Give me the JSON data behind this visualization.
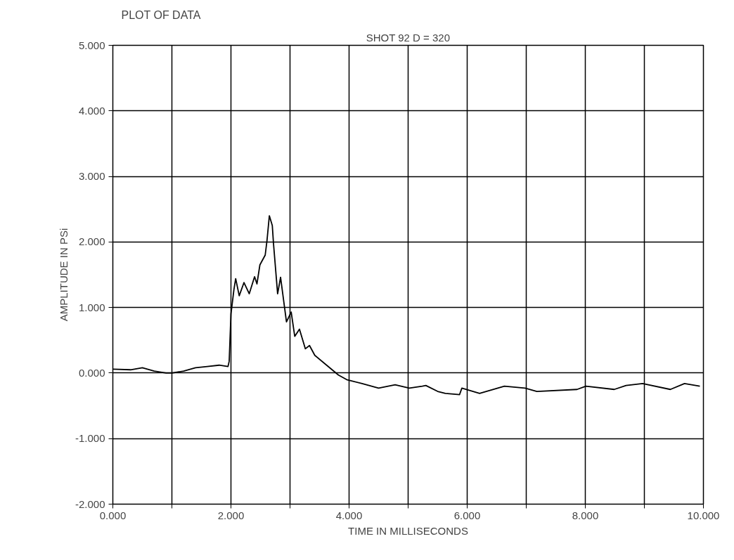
{
  "chart_data": {
    "type": "line",
    "title": "PLOT OF DATA",
    "subtitle": "SHOT 92 D = 320",
    "xlabel": "TIME IN MILLISECONDS",
    "ylabel": "AMPLITUDE IN PSi",
    "x": [
      0,
      0.3,
      0.5,
      0.7,
      0.9,
      1.0,
      1.2,
      1.4,
      1.6,
      1.8,
      1.95,
      1.97,
      2.0,
      2.05,
      2.08,
      2.14,
      2.22,
      2.31,
      2.4,
      2.44,
      2.49,
      2.58,
      2.61,
      2.65,
      2.7,
      2.72,
      2.79,
      2.84,
      2.94,
      3.02,
      3.08,
      3.16,
      3.26,
      3.33,
      3.42,
      3.62,
      3.82,
      3.96,
      4.22,
      4.5,
      4.78,
      5.02,
      5.24,
      5.3,
      5.5,
      5.63,
      5.87,
      5.91,
      6.21,
      6.63,
      6.98,
      7.18,
      7.86,
      8.01,
      8.49,
      8.69,
      8.97,
      9.44,
      9.68,
      9.94
    ],
    "series": [
      {
        "color": "#000000",
        "values": [
          0.06,
          0.05,
          0.08,
          0.03,
          0.0,
          0.0,
          0.03,
          0.08,
          0.1,
          0.12,
          0.1,
          0.18,
          0.9,
          1.27,
          1.44,
          1.18,
          1.38,
          1.21,
          1.47,
          1.36,
          1.65,
          1.8,
          2.02,
          2.4,
          2.25,
          1.98,
          1.21,
          1.46,
          0.78,
          0.93,
          0.56,
          0.67,
          0.37,
          0.42,
          0.27,
          0.12,
          -0.03,
          -0.1,
          -0.16,
          -0.23,
          -0.18,
          -0.23,
          -0.2,
          -0.19,
          -0.28,
          -0.31,
          -0.33,
          -0.23,
          -0.31,
          -0.2,
          -0.23,
          -0.28,
          -0.25,
          -0.2,
          -0.25,
          -0.19,
          -0.16,
          -0.25,
          -0.16,
          -0.2
        ]
      }
    ],
    "xlim": [
      0,
      10
    ],
    "ylim": [
      -2,
      5
    ],
    "xticks": [
      {
        "value": 0,
        "label": "0.000"
      },
      {
        "value": 1,
        "label": null
      },
      {
        "value": 2,
        "label": "2.000"
      },
      {
        "value": 3,
        "label": null
      },
      {
        "value": 4,
        "label": "4.000"
      },
      {
        "value": 5,
        "label": null
      },
      {
        "value": 6,
        "label": "6.000"
      },
      {
        "value": 7,
        "label": null
      },
      {
        "value": 8,
        "label": "8.000"
      },
      {
        "value": 9,
        "label": null
      },
      {
        "value": 10,
        "label": "10.000"
      }
    ],
    "yticks": [
      {
        "value": -2,
        "label": "-2.000"
      },
      {
        "value": -1,
        "label": "-1.000"
      },
      {
        "value": 0,
        "label": "0.000"
      },
      {
        "value": 1,
        "label": "1.000"
      },
      {
        "value": 2,
        "label": "2.000"
      },
      {
        "value": 3,
        "label": "3.000"
      },
      {
        "value": 4,
        "label": "4.000"
      },
      {
        "value": 5,
        "label": "5.000"
      }
    ],
    "grid": true,
    "marker": "none",
    "line_style": "solid"
  }
}
